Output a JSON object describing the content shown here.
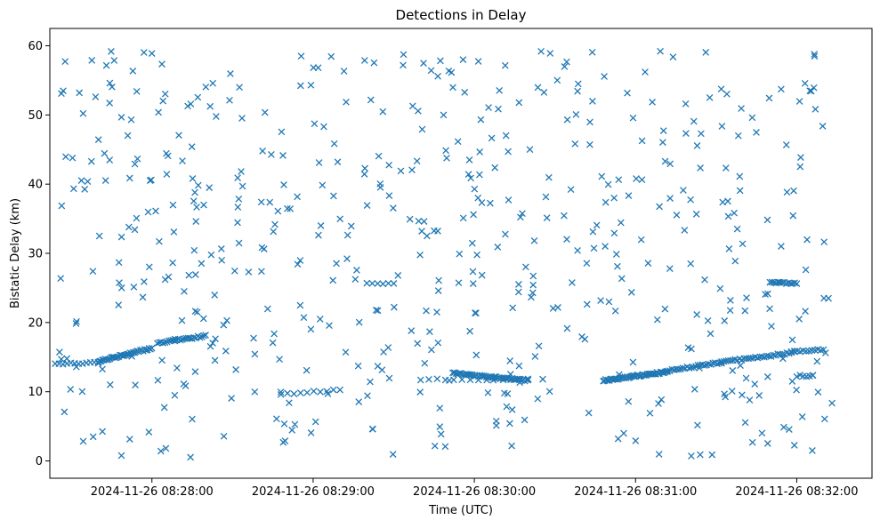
{
  "chart_data": {
    "type": "scatter",
    "title": "Detections in Delay",
    "xlabel": "Time (UTC)",
    "ylabel": "Bistatic Delay (km)",
    "xlim": [
      "2024-11-26 08:27:22",
      "2024-11-26 08:32:28"
    ],
    "ylim": [
      -2.5,
      62.5
    ],
    "x_ticks": [
      "2024-11-26 08:28:00",
      "2024-11-26 08:29:00",
      "2024-11-26 08:30:00",
      "2024-11-26 08:31:00",
      "2024-11-26 08:32:00"
    ],
    "y_ticks": [
      "0",
      "10",
      "20",
      "30",
      "40",
      "50",
      "60"
    ],
    "marker": "x",
    "color": "#1f77b4",
    "grid": false,
    "tracks": [
      {
        "t_start": "08:27:24",
        "t_end": "08:27:40",
        "y_start": 14.0,
        "y_end": 14.2,
        "n": 12
      },
      {
        "t_start": "08:27:40",
        "t_end": "08:28:00",
        "y_start": 14.4,
        "y_end": 16.3,
        "n": 38
      },
      {
        "t_start": "08:28:02",
        "t_end": "08:28:20",
        "y_start": 17.0,
        "y_end": 18.1,
        "n": 26
      },
      {
        "t_start": "08:28:48",
        "t_end": "08:29:10",
        "y_start": 9.6,
        "y_end": 10.3,
        "n": 10
      },
      {
        "t_start": "08:29:20",
        "t_end": "08:29:30",
        "y_start": 25.7,
        "y_end": 25.6,
        "n": 6
      },
      {
        "t_start": "08:29:40",
        "t_end": "08:30:20",
        "y_start": 11.8,
        "y_end": 11.8,
        "n": 14
      },
      {
        "t_start": "08:29:52",
        "t_end": "08:30:20",
        "y_start": 12.7,
        "y_end": 11.6,
        "n": 48
      },
      {
        "t_start": "08:30:48",
        "t_end": "08:31:12",
        "y_start": 11.6,
        "y_end": 12.9,
        "n": 55
      },
      {
        "t_start": "08:31:12",
        "t_end": "08:31:32",
        "y_start": 13.1,
        "y_end": 14.2,
        "n": 26
      },
      {
        "t_start": "08:31:32",
        "t_end": "08:31:58",
        "y_start": 14.3,
        "y_end": 15.6,
        "n": 32
      },
      {
        "t_start": "08:31:58",
        "t_end": "08:32:10",
        "y_start": 15.8,
        "y_end": 16.1,
        "n": 12
      },
      {
        "t_start": "08:31:50",
        "t_end": "08:32:00",
        "y_start": 25.8,
        "y_end": 25.6,
        "n": 14
      },
      {
        "t_start": "08:32:00",
        "t_end": "08:32:06",
        "y_start": 12.3,
        "y_end": 12.3,
        "n": 6
      }
    ],
    "noise_detections": {
      "t_range": [
        "08:27:24",
        "08:32:14"
      ],
      "y_range": [
        0.5,
        59.5
      ],
      "approx_count": 560
    }
  }
}
